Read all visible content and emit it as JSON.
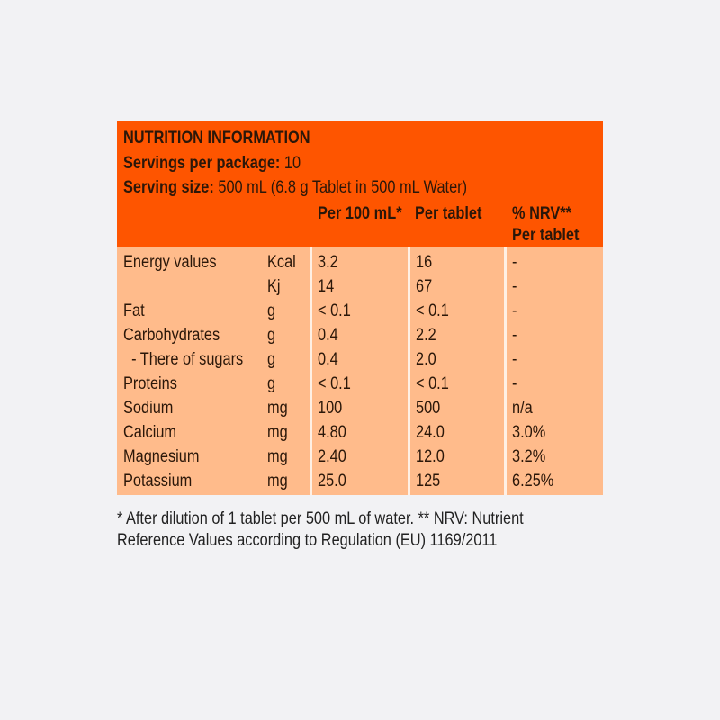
{
  "header": {
    "title": "NUTRITION INFORMATION",
    "servings_label": "Servings per package:",
    "servings_value": "10",
    "serving_size_label": "Serving size:",
    "serving_size_value": "500 mL (6.8 g Tablet in 500 mL Water)",
    "columns": [
      "Per 100 mL*",
      "Per tablet",
      "% NRV**",
      "Per tablet"
    ]
  },
  "rows": [
    {
      "name": "Energy values",
      "unit": "Kcal",
      "per100": "3.2",
      "pertab": "16",
      "nrv": "-"
    },
    {
      "name": "",
      "unit": "Kj",
      "per100": "14",
      "pertab": "67",
      "nrv": "-"
    },
    {
      "name": "Fat",
      "unit": "g",
      "per100": "< 0.1",
      "pertab": "< 0.1",
      "nrv": "-"
    },
    {
      "name": "Carbohydrates",
      "unit": "g",
      "per100": "0.4",
      "pertab": "2.2",
      "nrv": "-"
    },
    {
      "name": "  - There of sugars",
      "unit": "g",
      "per100": "0.4",
      "pertab": "2.0",
      "nrv": "-"
    },
    {
      "name": "Proteins",
      "unit": "g",
      "per100": "< 0.1",
      "pertab": "< 0.1",
      "nrv": "-"
    },
    {
      "name": "Sodium",
      "unit": "mg",
      "per100": "100",
      "pertab": "500",
      "nrv": "n/a"
    },
    {
      "name": "Calcium",
      "unit": "mg",
      "per100": "4.80",
      "pertab": "24.0",
      "nrv": "3.0%"
    },
    {
      "name": "Magnesium",
      "unit": "mg",
      "per100": "2.40",
      "pertab": "12.0",
      "nrv": "3.2%"
    },
    {
      "name": "Potassium",
      "unit": "mg",
      "per100": "25.0",
      "pertab": "125",
      "nrv": "6.25%"
    }
  ],
  "footnote": {
    "line1": "* After dilution of 1 tablet per 500 mL of water. ** NRV: Nutrient",
    "line2": "Reference Values according to Regulation (EU) 1169/2011"
  },
  "colors": {
    "header_bg": "#fe5500",
    "body_bg": "#ffbb8b",
    "page_bg": "#f2f2f4"
  }
}
